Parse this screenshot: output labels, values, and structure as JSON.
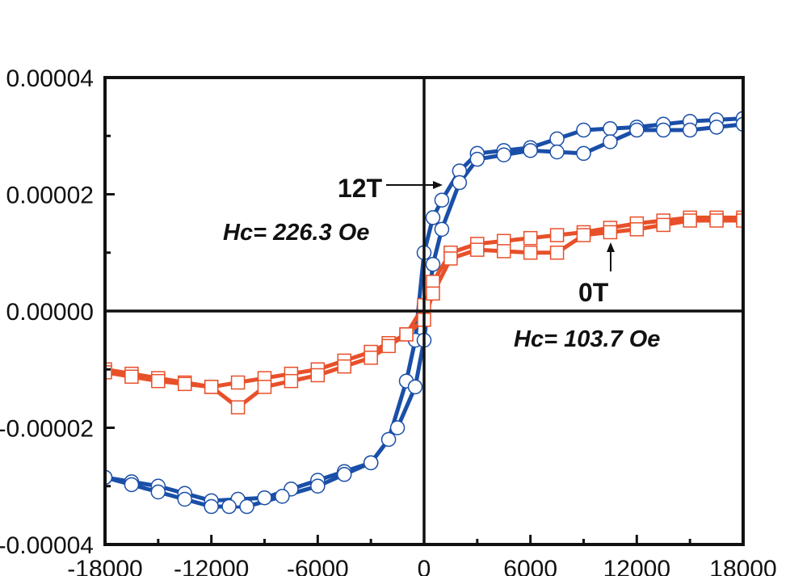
{
  "chart_data": {
    "type": "line",
    "title": "",
    "xlabel": "",
    "ylabel": "",
    "xlim": [
      -18000,
      18000
    ],
    "ylim": [
      -4e-05,
      4e-05
    ],
    "x_ticks": [
      -18000,
      -12000,
      -6000,
      0,
      6000,
      12000,
      18000
    ],
    "x_tick_labels": [
      "-18000",
      "-12000",
      "-6000",
      "0",
      "6000",
      "12000",
      "18000"
    ],
    "y_ticks": [
      4e-05,
      2e-05,
      0.0,
      -2e-05,
      -4e-05
    ],
    "y_tick_labels": [
      "0.00004",
      "0.00002",
      "0.00000",
      "-0.00002",
      "-0.00004"
    ],
    "grid": false,
    "zero_axes": true,
    "series": [
      {
        "label": "12T",
        "color": "#1a4fa8",
        "marker": "open-circle",
        "branches": [
          {
            "x": [
              18000,
              15000,
              12000,
              9000,
              6000,
              3000,
              2000,
              1000,
              500,
              0,
              -500,
              -1000,
              -2000,
              -3000,
              -6000,
              -9000,
              -12000,
              -15000,
              -18000
            ],
            "y": [
              3.3e-05,
              3.25e-05,
              3.15e-05,
              3.1e-05,
              2.8e-05,
              2.7e-05,
              2.4e-05,
              1.9e-05,
              1.6e-05,
              1e-05,
              -5e-06,
              -1.2e-05,
              -2.2e-05,
              -2.6e-05,
              -2.9e-05,
              -3.2e-05,
              -3.25e-05,
              -3e-05,
              -2.85e-05
            ]
          },
          {
            "x": [
              -18000,
              -15000,
              -12000,
              -10000,
              -6000,
              -3000,
              -1500,
              -500,
              0,
              500,
              1000,
              2000,
              3000,
              6000,
              9000,
              12000,
              15000,
              18000
            ],
            "y": [
              -2.85e-05,
              -3.1e-05,
              -3.35e-05,
              -3.35e-05,
              -3e-05,
              -2.6e-05,
              -2e-05,
              -1.3e-05,
              -5e-06,
              8e-06,
              1.4e-05,
              2.2e-05,
              2.6e-05,
              2.75e-05,
              2.7e-05,
              3.1e-05,
              3.1e-05,
              3.2e-05
            ]
          }
        ]
      },
      {
        "label": "0T",
        "color": "#e8502a",
        "marker": "open-square",
        "branches": [
          {
            "x": [
              18000,
              15000,
              12000,
              9000,
              6000,
              3000,
              1500,
              500,
              0,
              -1000,
              -3000,
              -6000,
              -9000,
              -12000,
              -15000,
              -18000
            ],
            "y": [
              1.6e-05,
              1.6e-05,
              1.5e-05,
              1.35e-05,
              1.25e-05,
              1.15e-05,
              1e-05,
              5e-06,
              1e-06,
              -4e-06,
              -7e-06,
              -1e-05,
              -1.15e-05,
              -1.3e-05,
              -1.15e-05,
              -1e-05
            ]
          },
          {
            "x": [
              -18000,
              -15000,
              -12000,
              -10500,
              -9000,
              -6000,
              -3000,
              -1000,
              0,
              500,
              1500,
              3000,
              6000,
              7500,
              9000,
              12000,
              15000,
              18000
            ],
            "y": [
              -1.05e-05,
              -1.2e-05,
              -1.3e-05,
              -1.65e-05,
              -1.3e-05,
              -1.1e-05,
              -8e-06,
              -4e-06,
              -1.5e-06,
              3e-06,
              9e-06,
              1.05e-05,
              1e-05,
              1e-05,
              1.3e-05,
              1.4e-05,
              1.55e-05,
              1.55e-05
            ]
          }
        ]
      }
    ],
    "annotations": [
      {
        "text": "12T",
        "arrow": true
      },
      {
        "text_prefix": "Hc",
        "text": "= 226.3 Oe"
      },
      {
        "text": "0T",
        "arrow": true
      },
      {
        "text_prefix": "Hc",
        "text": "= 103.7 Oe"
      }
    ]
  }
}
